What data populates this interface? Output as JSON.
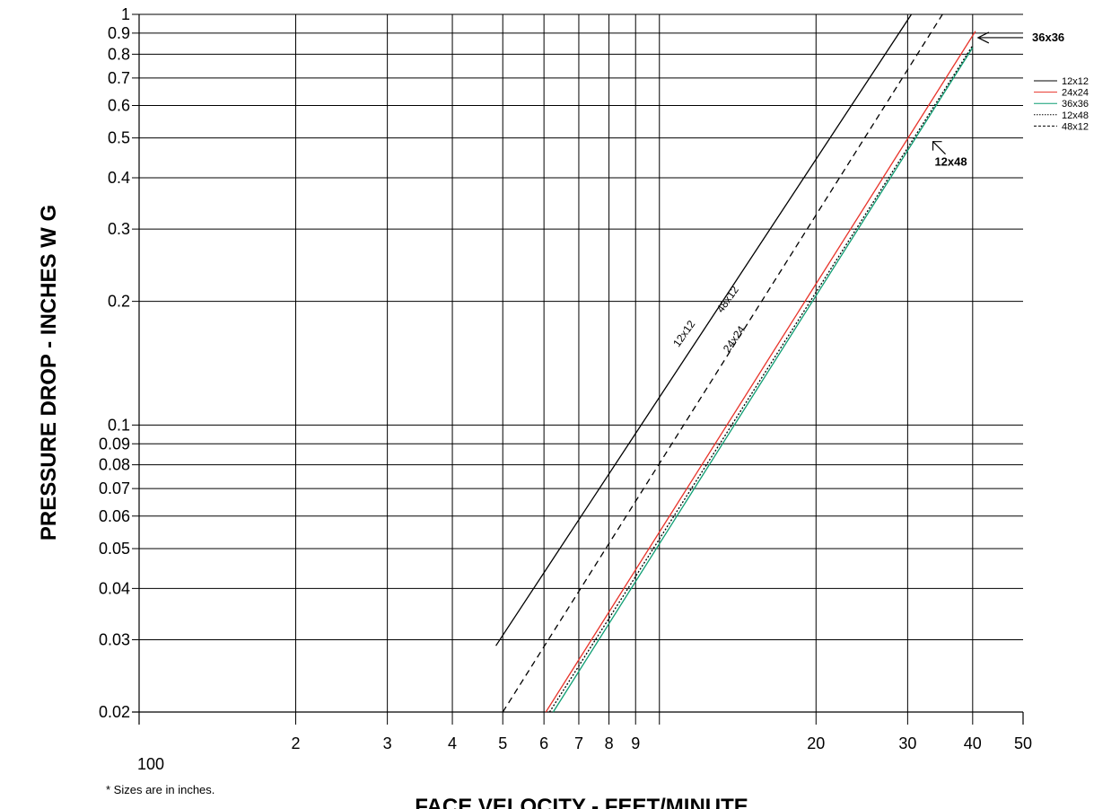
{
  "chart_data": {
    "type": "line",
    "title": "",
    "xlabel": "FACE VELOCITY - FEET/MINUTE",
    "ylabel": "PRESSURE DROP - INCHES W G",
    "x_scale": "log",
    "y_scale": "log",
    "x_axis_base_label": "100",
    "xlim": [
      1,
      50
    ],
    "ylim": [
      0.02,
      1
    ],
    "x_ticks": [
      1,
      2,
      3,
      4,
      5,
      6,
      7,
      8,
      9,
      10,
      20,
      30,
      40,
      50
    ],
    "x_tick_labels": [
      "",
      "2",
      "3",
      "4",
      "5",
      "6",
      "7",
      "8",
      "9",
      "",
      "20",
      "30",
      "40",
      "50"
    ],
    "y_ticks": [
      0.02,
      0.03,
      0.04,
      0.05,
      0.06,
      0.07,
      0.08,
      0.09,
      0.1,
      0.2,
      0.3,
      0.4,
      0.5,
      0.6,
      0.7,
      0.8,
      0.9,
      1
    ],
    "y_tick_labels": [
      "0.02",
      "0.03",
      "0.04",
      "0.05",
      "0.06",
      "0.07",
      "0.08",
      "0.09",
      "0.1",
      "0.2",
      "0.3",
      "0.4",
      "0.5",
      "0.6",
      "0.7",
      "0.8",
      "0.9",
      "1"
    ],
    "grid": true,
    "legend_position": "top-right",
    "series": [
      {
        "name": "12x12",
        "color": "#000000",
        "dash": "solid",
        "x": [
          4.85,
          30.5
        ],
        "y": [
          0.029,
          1.0
        ]
      },
      {
        "name": "24x24",
        "color": "#e8332a",
        "dash": "solid",
        "x": [
          6.05,
          40.5
        ],
        "y": [
          0.02,
          0.91
        ]
      },
      {
        "name": "36x36",
        "color": "#0e9e73",
        "dash": "solid",
        "x": [
          6.25,
          40.0
        ],
        "y": [
          0.02,
          0.83
        ]
      },
      {
        "name": "12x48",
        "color": "#000000",
        "dash": "dotted",
        "x": [
          6.15,
          40.0
        ],
        "y": [
          0.02,
          0.84
        ]
      },
      {
        "name": "48x12",
        "color": "#000000",
        "dash": "dashed",
        "x": [
          5.0,
          35.0
        ],
        "y": [
          0.02,
          1.0
        ]
      }
    ],
    "inline_labels": [
      {
        "text": "12x12",
        "x": 11.3,
        "y": 0.165
      },
      {
        "text": "48x12",
        "x": 13.7,
        "y": 0.2
      },
      {
        "text": "24x24",
        "x": 14.1,
        "y": 0.16
      }
    ],
    "callouts": [
      {
        "text": "36x36",
        "x": 40.0,
        "y": 0.86
      },
      {
        "text": "12x48",
        "x": 32.5,
        "y": 0.49
      }
    ],
    "note": "* Sizes are in inches."
  }
}
